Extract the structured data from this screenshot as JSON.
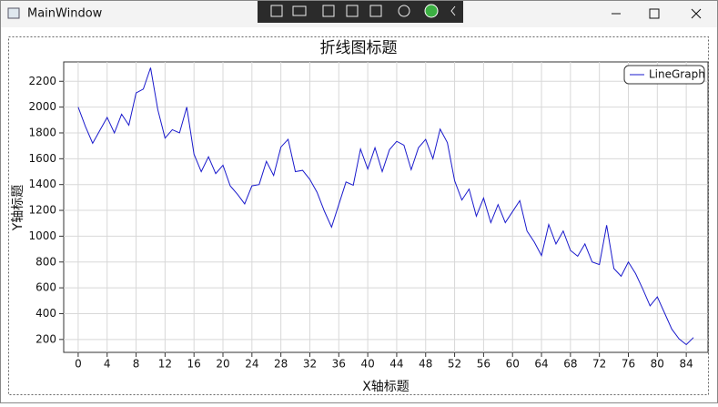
{
  "window": {
    "title": "MainWindow"
  },
  "chart_data": {
    "type": "line",
    "title": "折线图标题",
    "x_label": "X轴标题",
    "y_label": "Y轴标题",
    "x": [
      0,
      1,
      2,
      3,
      4,
      5,
      6,
      7,
      8,
      9,
      10,
      11,
      12,
      13,
      14,
      15,
      16,
      17,
      18,
      19,
      20,
      21,
      22,
      23,
      24,
      25,
      26,
      27,
      28,
      29,
      30,
      31,
      32,
      33,
      34,
      35,
      36,
      37,
      38,
      39,
      40,
      41,
      42,
      43,
      44,
      45,
      46,
      47,
      48,
      49,
      50,
      51,
      52,
      53,
      54,
      55,
      56,
      57,
      58,
      59,
      60,
      61,
      62,
      63,
      64,
      65,
      66,
      67,
      68,
      69,
      70,
      71,
      72,
      73,
      74,
      75,
      76,
      77,
      78,
      79,
      80,
      81,
      82,
      83,
      84,
      85
    ],
    "series": [
      {
        "name": "LineGraph",
        "color": "#1a1acc",
        "values": [
          2000,
          1850,
          1720,
          1820,
          1920,
          1800,
          1945,
          1860,
          2110,
          2140,
          2305,
          1980,
          1760,
          1825,
          1800,
          2000,
          1635,
          1500,
          1615,
          1485,
          1550,
          1390,
          1325,
          1250,
          1390,
          1400,
          1580,
          1470,
          1690,
          1750,
          1500,
          1510,
          1440,
          1340,
          1195,
          1070,
          1245,
          1420,
          1395,
          1675,
          1520,
          1685,
          1500,
          1670,
          1735,
          1705,
          1515,
          1685,
          1750,
          1600,
          1830,
          1725,
          1430,
          1280,
          1365,
          1155,
          1295,
          1105,
          1245,
          1105,
          1190,
          1275,
          1040,
          955,
          850,
          1090,
          940,
          1040,
          890,
          845,
          940,
          800,
          780,
          1085,
          750,
          690,
          800,
          710,
          590,
          460,
          530,
          405,
          280,
          205,
          160,
          215
        ]
      }
    ],
    "xlim": [
      -2,
      87
    ],
    "ylim": [
      100,
      2350
    ],
    "xticks": [
      0,
      4,
      8,
      12,
      16,
      20,
      24,
      28,
      32,
      36,
      40,
      44,
      48,
      52,
      56,
      60,
      64,
      68,
      72,
      76,
      80,
      84
    ],
    "yticks": [
      200,
      400,
      600,
      800,
      1000,
      1200,
      1400,
      1600,
      1800,
      2000,
      2200
    ],
    "grid": true,
    "legend": "top-right"
  }
}
